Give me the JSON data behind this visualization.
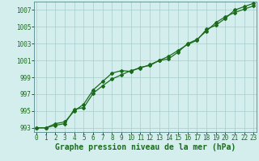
{
  "xlabel": "Graphe pression niveau de la mer (hPa)",
  "x": [
    0,
    1,
    2,
    3,
    4,
    5,
    6,
    7,
    8,
    9,
    10,
    11,
    12,
    13,
    14,
    15,
    16,
    17,
    18,
    19,
    20,
    21,
    22,
    23
  ],
  "line1": [
    993.0,
    993.0,
    993.3,
    993.5,
    995.2,
    995.4,
    997.1,
    998.0,
    998.8,
    999.3,
    999.8,
    1000.1,
    1000.5,
    1001.0,
    1001.5,
    1002.2,
    1002.9,
    1003.4,
    1004.7,
    1005.2,
    1006.0,
    1007.0,
    1007.4,
    1007.8
  ],
  "line2": [
    993.0,
    993.0,
    993.5,
    993.7,
    995.0,
    995.8,
    997.5,
    998.5,
    999.5,
    999.8,
    999.7,
    1000.2,
    1000.4,
    1001.0,
    1001.2,
    1002.0,
    1003.0,
    1003.5,
    1004.5,
    1005.5,
    1006.2,
    1006.7,
    1007.1,
    1007.5
  ],
  "line_color": "#1a6b1a",
  "marker": "D",
  "marker_size": 2.0,
  "ylim": [
    992.5,
    1008.0
  ],
  "yticks": [
    993,
    995,
    997,
    999,
    1001,
    1003,
    1005,
    1007
  ],
  "xlim": [
    -0.3,
    23.3
  ],
  "xticks": [
    0,
    1,
    2,
    3,
    4,
    5,
    6,
    7,
    8,
    9,
    10,
    11,
    12,
    13,
    14,
    15,
    16,
    17,
    18,
    19,
    20,
    21,
    22,
    23
  ],
  "bg_color": "#d4eeee",
  "grid_color": "#a8cccc",
  "tick_fontsize": 5.5,
  "xlabel_fontsize": 7.0,
  "line_width": 0.9
}
